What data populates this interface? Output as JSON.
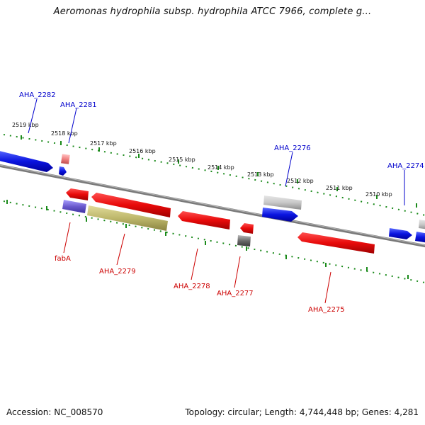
{
  "title": "Aeromonas hydrophila subsp. hydrophila ATCC 7966, complete g...",
  "footer": {
    "accession": "Accession: NC_008570",
    "topology": "Topology: circular; Length: 4,744,448 bp; Genes: 4,281"
  },
  "kbp_ticks": [
    "2519 kbp",
    "2518 kbp",
    "2517 kbp",
    "2516 kbp",
    "2515 kbp",
    "2514 kbp",
    "2513 kbp",
    "2512 kbp",
    "2511 kbp",
    "2510 kbp"
  ],
  "genes_forward": [
    {
      "label": "AHA_2282",
      "color": "#0000cc"
    },
    {
      "label": "AHA_2281",
      "color": "#0000cc"
    },
    {
      "label": "AHA_2276",
      "color": "#0000cc"
    },
    {
      "label": "AHA_2274",
      "color": "#0000cc"
    }
  ],
  "genes_reverse": [
    {
      "label": "fabA",
      "color": "#cc0000"
    },
    {
      "label": "AHA_2279",
      "color": "#cc0000"
    },
    {
      "label": "AHA_2278",
      "color": "#cc0000"
    },
    {
      "label": "AHA_2277",
      "color": "#cc0000"
    },
    {
      "label": "AHA_2275",
      "color": "#cc0000"
    }
  ],
  "colors": {
    "forward_label": "#0000cc",
    "reverse_label": "#cc0000",
    "forward_gene": "#0a14e0",
    "reverse_gene": "#e80a0a",
    "backbone": "#7a7a7a",
    "tick": "#1a8a1a"
  }
}
